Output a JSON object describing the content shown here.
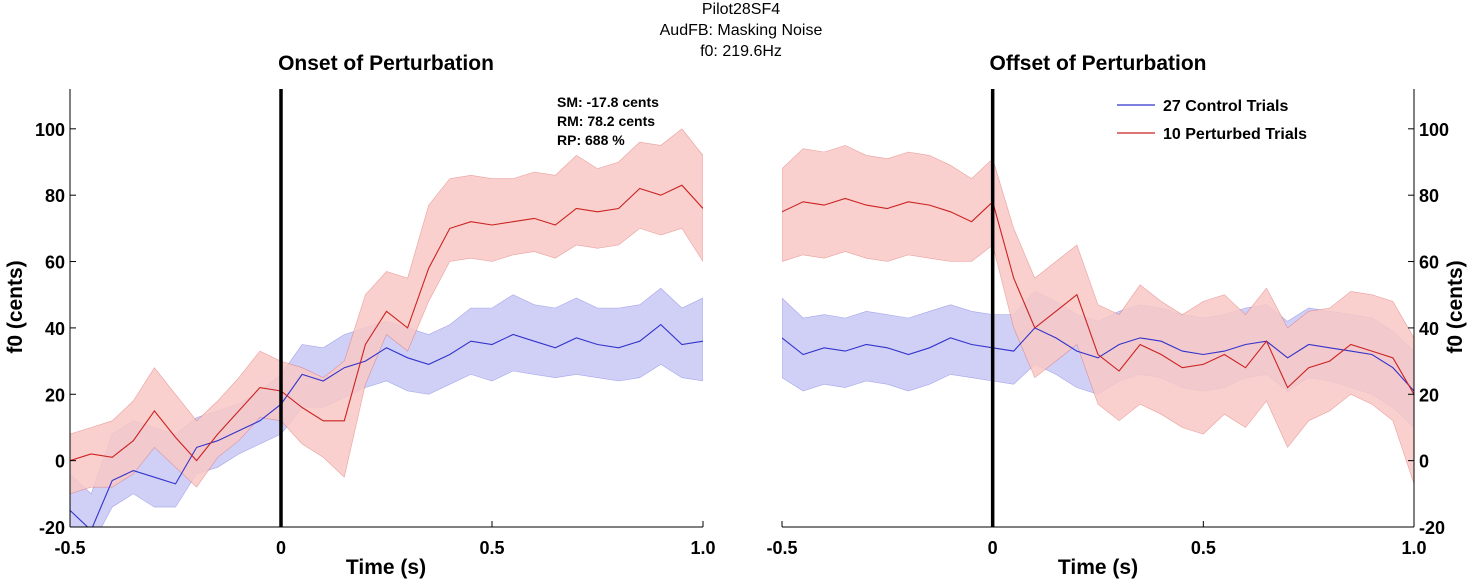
{
  "header": {
    "line1": "Pilot28SF4",
    "line2": "AudFB: Masking Noise",
    "line3": "f0: 219.6Hz"
  },
  "colors": {
    "control_line": "#3333cc",
    "control_fill": "#c8c8f6",
    "perturbed_line": "#cc2222",
    "perturbed_fill": "#f8c8c4",
    "overlap_fill": "#b8a2d6",
    "axis": "#000000"
  },
  "legend": {
    "control": "27 Control Trials",
    "perturbed": "10 Perturbed Trials",
    "placement": "top-right of right panel"
  },
  "stats": {
    "sm": "SM: -17.8 cents",
    "rm": "RM: 78.2 cents",
    "rp": "RP: 688 %"
  },
  "chart_data": [
    {
      "type": "line",
      "title": "Onset of Perturbation",
      "xlabel": "Time (s)",
      "ylabel": "f0 (cents)",
      "xlim": [
        -0.5,
        1.0
      ],
      "ylim": [
        -20,
        112
      ],
      "xticks": [
        -0.5,
        0,
        0.5,
        1.0
      ],
      "xtick_labels": [
        "-0.5",
        "0",
        "0.5",
        "1.0"
      ],
      "yticks": [
        -20,
        0,
        20,
        40,
        60,
        80,
        100
      ],
      "ytick_labels": [
        "-20",
        "0",
        "20",
        "40",
        "60",
        "80",
        "100"
      ],
      "ytick_side": "left",
      "event_line_x": 0,
      "grid": false,
      "series": [
        {
          "name": "27 Control Trials",
          "color": "#3333cc",
          "x": [
            -0.5,
            -0.45,
            -0.4,
            -0.35,
            -0.3,
            -0.25,
            -0.2,
            -0.15,
            -0.1,
            -0.05,
            0.0,
            0.05,
            0.1,
            0.15,
            0.2,
            0.25,
            0.3,
            0.35,
            0.4,
            0.45,
            0.5,
            0.55,
            0.6,
            0.65,
            0.7,
            0.75,
            0.8,
            0.85,
            0.9,
            0.95,
            1.0
          ],
          "y": [
            -15,
            -21,
            -6,
            -3,
            -5,
            -7,
            4,
            6,
            9,
            12,
            17,
            26,
            24,
            28,
            30,
            34,
            31,
            29,
            32,
            36,
            35,
            38,
            36,
            34,
            37,
            35,
            34,
            36,
            41,
            35,
            36
          ],
          "lower": [
            -24,
            -26,
            -14,
            -10,
            -14,
            -14,
            -4,
            -2,
            2,
            5,
            8,
            16,
            16,
            19,
            22,
            24,
            21,
            20,
            23,
            26,
            24,
            27,
            26,
            25,
            26,
            25,
            24,
            25,
            29,
            25,
            24
          ],
          "upper": [
            -4,
            -10,
            8,
            12,
            10,
            8,
            13,
            15,
            17,
            21,
            26,
            35,
            34,
            38,
            40,
            42,
            40,
            38,
            41,
            46,
            46,
            50,
            47,
            46,
            49,
            46,
            46,
            47,
            52,
            46,
            49
          ]
        },
        {
          "name": "10 Perturbed Trials",
          "color": "#cc2222",
          "x": [
            -0.5,
            -0.45,
            -0.4,
            -0.35,
            -0.3,
            -0.25,
            -0.2,
            -0.15,
            -0.1,
            -0.05,
            0.0,
            0.05,
            0.1,
            0.15,
            0.2,
            0.25,
            0.3,
            0.35,
            0.4,
            0.45,
            0.5,
            0.55,
            0.6,
            0.65,
            0.7,
            0.75,
            0.8,
            0.85,
            0.9,
            0.95,
            1.0
          ],
          "y": [
            0,
            2,
            1,
            6,
            15,
            7,
            0,
            8,
            15,
            22,
            21,
            16,
            12,
            12,
            35,
            45,
            40,
            58,
            70,
            72,
            71,
            72,
            73,
            71,
            76,
            75,
            76,
            82,
            80,
            83,
            76
          ],
          "lower": [
            -10,
            -8,
            -8,
            -4,
            4,
            -2,
            -8,
            1,
            6,
            13,
            12,
            5,
            1,
            -5,
            23,
            38,
            33,
            48,
            60,
            61,
            60,
            62,
            63,
            61,
            65,
            64,
            65,
            70,
            68,
            70,
            60
          ],
          "upper": [
            8,
            10,
            12,
            18,
            28,
            20,
            12,
            18,
            25,
            33,
            30,
            28,
            25,
            30,
            50,
            57,
            55,
            77,
            85,
            86,
            85,
            85,
            87,
            86,
            92,
            88,
            90,
            96,
            95,
            100,
            92
          ]
        }
      ]
    },
    {
      "type": "line",
      "title": "Offset of Perturbation",
      "xlabel": "Time (s)",
      "ylabel": "f0 (cents)",
      "xlim": [
        -0.5,
        1.0
      ],
      "ylim": [
        -20,
        112
      ],
      "xticks": [
        -0.5,
        0,
        0.5,
        1.0
      ],
      "xtick_labels": [
        "-0.5",
        "0",
        "0.5",
        "1.0"
      ],
      "yticks": [
        -20,
        0,
        20,
        40,
        60,
        80,
        100
      ],
      "ytick_labels": [
        "-20",
        "0",
        "20",
        "40",
        "60",
        "80",
        "100"
      ],
      "ytick_side": "right",
      "event_line_x": 0,
      "grid": false,
      "series": [
        {
          "name": "27 Control Trials",
          "color": "#3333cc",
          "x": [
            -0.5,
            -0.45,
            -0.4,
            -0.35,
            -0.3,
            -0.25,
            -0.2,
            -0.15,
            -0.1,
            -0.05,
            0.0,
            0.05,
            0.1,
            0.15,
            0.2,
            0.25,
            0.3,
            0.35,
            0.4,
            0.45,
            0.5,
            0.55,
            0.6,
            0.65,
            0.7,
            0.75,
            0.8,
            0.85,
            0.9,
            0.95,
            1.0
          ],
          "y": [
            37,
            32,
            34,
            33,
            35,
            34,
            32,
            34,
            37,
            35,
            34,
            33,
            40,
            37,
            33,
            31,
            35,
            37,
            36,
            33,
            32,
            33,
            35,
            36,
            31,
            35,
            34,
            33,
            32,
            28,
            21
          ],
          "lower": [
            25,
            21,
            23,
            22,
            24,
            23,
            21,
            23,
            26,
            25,
            24,
            23,
            29,
            26,
            22,
            20,
            24,
            26,
            25,
            22,
            21,
            22,
            25,
            26,
            21,
            25,
            24,
            22,
            20,
            16,
            10
          ],
          "upper": [
            49,
            43,
            44,
            43,
            45,
            44,
            43,
            45,
            47,
            45,
            44,
            44,
            51,
            48,
            44,
            42,
            45,
            47,
            46,
            44,
            43,
            44,
            46,
            47,
            42,
            46,
            45,
            44,
            43,
            39,
            33
          ]
        },
        {
          "name": "10 Perturbed Trials",
          "color": "#cc2222",
          "x": [
            -0.5,
            -0.45,
            -0.4,
            -0.35,
            -0.3,
            -0.25,
            -0.2,
            -0.15,
            -0.1,
            -0.05,
            0.0,
            0.05,
            0.1,
            0.15,
            0.2,
            0.25,
            0.3,
            0.35,
            0.4,
            0.45,
            0.5,
            0.55,
            0.6,
            0.65,
            0.7,
            0.75,
            0.8,
            0.85,
            0.9,
            0.95,
            1.0
          ],
          "y": [
            75,
            78,
            77,
            79,
            77,
            76,
            78,
            77,
            75,
            72,
            78,
            55,
            40,
            45,
            50,
            32,
            27,
            35,
            32,
            28,
            29,
            32,
            28,
            36,
            22,
            28,
            30,
            35,
            33,
            31,
            20
          ],
          "lower": [
            60,
            62,
            61,
            63,
            61,
            60,
            62,
            61,
            60,
            60,
            65,
            40,
            25,
            30,
            35,
            17,
            12,
            17,
            14,
            10,
            8,
            14,
            10,
            18,
            4,
            12,
            15,
            20,
            17,
            12,
            -7
          ],
          "upper": [
            88,
            94,
            93,
            95,
            92,
            91,
            93,
            92,
            89,
            85,
            91,
            70,
            55,
            60,
            65,
            47,
            44,
            53,
            48,
            44,
            48,
            50,
            44,
            52,
            40,
            45,
            46,
            51,
            50,
            48,
            37
          ]
        }
      ]
    }
  ]
}
